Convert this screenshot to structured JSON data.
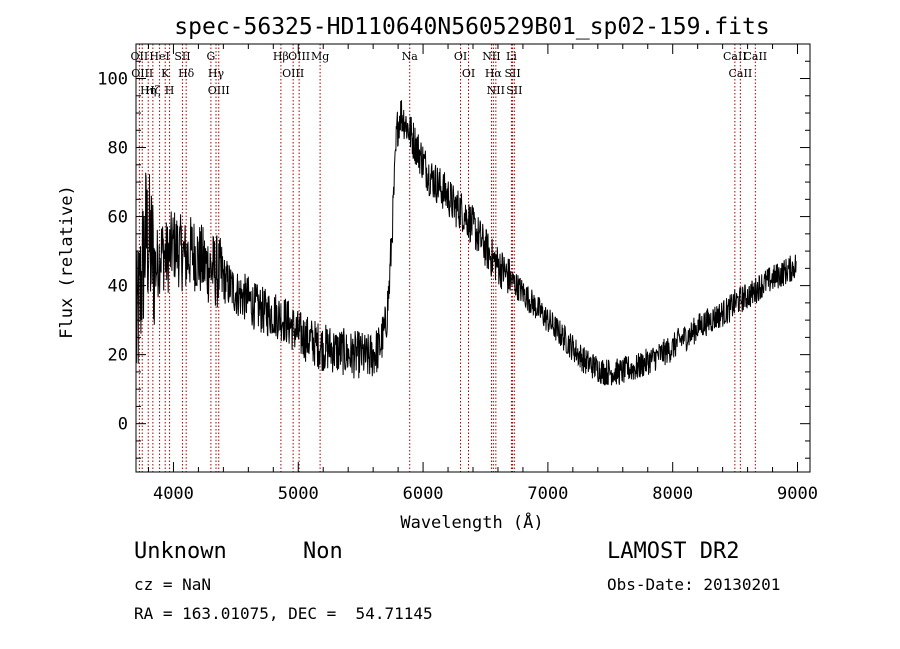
{
  "chart_data": {
    "type": "line",
    "title": "spec-56325-HD110640N560529B01_sp02-159.fits",
    "xlabel": "Wavelength (Å)",
    "ylabel": "Flux (relative)",
    "xlim": [
      3700,
      9100
    ],
    "ylim": [
      -14,
      110
    ],
    "xticks": [
      4000,
      5000,
      6000,
      7000,
      8000,
      9000
    ],
    "yticks": [
      0,
      20,
      40,
      60,
      80,
      100
    ],
    "grid": false,
    "line_color": "#000000",
    "marker_color": "#aa0000",
    "spectrum": {
      "x": [
        3700,
        3740,
        3780,
        3820,
        3860,
        3900,
        3950,
        4000,
        4050,
        4100,
        4150,
        4200,
        4250,
        4300,
        4350,
        4400,
        4450,
        4500,
        4550,
        4600,
        4650,
        4700,
        4750,
        4800,
        4850,
        4900,
        4950,
        5000,
        5050,
        5100,
        5150,
        5200,
        5250,
        5300,
        5350,
        5400,
        5450,
        5500,
        5550,
        5600,
        5650,
        5700,
        5730,
        5760,
        5790,
        5820,
        5850,
        5900,
        5950,
        6000,
        6050,
        6100,
        6150,
        6200,
        6250,
        6300,
        6350,
        6400,
        6450,
        6500,
        6550,
        6600,
        6650,
        6700,
        6750,
        6800,
        6850,
        6900,
        6950,
        7000,
        7050,
        7100,
        7150,
        7200,
        7250,
        7300,
        7350,
        7400,
        7450,
        7500,
        7550,
        7600,
        7650,
        7700,
        7750,
        7800,
        7850,
        7900,
        7950,
        8000,
        8050,
        8100,
        8150,
        8200,
        8250,
        8300,
        8350,
        8400,
        8450,
        8500,
        8550,
        8600,
        8650,
        8700,
        8750,
        8800,
        8850,
        8900,
        8950,
        8990
      ],
      "y": [
        25,
        40,
        55,
        50,
        45,
        50,
        48,
        52,
        50,
        48,
        50,
        48,
        46,
        45,
        44,
        42,
        40,
        38,
        37,
        36,
        34,
        33,
        32,
        32,
        31,
        30,
        28,
        26,
        25,
        24,
        23,
        22,
        22,
        21,
        21,
        20,
        20,
        20,
        19,
        20,
        22,
        28,
        40,
        62,
        85,
        90,
        88,
        84,
        80,
        76,
        72,
        70,
        68,
        66,
        63,
        62,
        60,
        57,
        54,
        51,
        48,
        46,
        44,
        42,
        40,
        38,
        36,
        34,
        32,
        30,
        28,
        26,
        24,
        22,
        20,
        18,
        17,
        16,
        15,
        15,
        15,
        15,
        16,
        16,
        17,
        18,
        19,
        20,
        21,
        22,
        24,
        25,
        26,
        28,
        29,
        30,
        31,
        32,
        33,
        35,
        36,
        37,
        38,
        40,
        41,
        42,
        43,
        44,
        45,
        46
      ]
    },
    "lines": [
      {
        "x": 3727,
        "label": "OII"
      },
      {
        "x": 3750,
        "label": "OIII"
      },
      {
        "x": 3798,
        "label": "Hη"
      },
      {
        "x": 3835,
        "label": "Hζ"
      },
      {
        "x": 3889,
        "label": "HeI"
      },
      {
        "x": 3934,
        "label": "K"
      },
      {
        "x": 3969,
        "label": "H"
      },
      {
        "x": 4072,
        "label": "SII"
      },
      {
        "x": 4102,
        "label": "Hδ"
      },
      {
        "x": 4300,
        "label": "G"
      },
      {
        "x": 4341,
        "label": "Hγ"
      },
      {
        "x": 4363,
        "label": "OIII"
      },
      {
        "x": 4861,
        "label": "Hβ"
      },
      {
        "x": 4959,
        "label": "OIII"
      },
      {
        "x": 5007,
        "label": "OIII"
      },
      {
        "x": 5175,
        "label": "Mg"
      },
      {
        "x": 5893,
        "label": "Na"
      },
      {
        "x": 6300,
        "label": "OI"
      },
      {
        "x": 6364,
        "label": "OI"
      },
      {
        "x": 6548,
        "label": "NII"
      },
      {
        "x": 6563,
        "label": "Hα"
      },
      {
        "x": 6583,
        "label": "NII"
      },
      {
        "x": 6708,
        "label": "Li"
      },
      {
        "x": 6717,
        "label": "SII"
      },
      {
        "x": 6731,
        "label": "SII"
      },
      {
        "x": 8498,
        "label": "CaII"
      },
      {
        "x": 8542,
        "label": "CaII"
      },
      {
        "x": 8662,
        "label": "CaII"
      }
    ]
  },
  "info": {
    "class_text": "Unknown",
    "subclass_text": "Non",
    "survey_text": "LAMOST DR2",
    "cz_text": "cz = NaN",
    "obsdate_text": "Obs-Date: 20130201",
    "radec_text": "RA = 163.01075, DEC =  54.71145"
  }
}
